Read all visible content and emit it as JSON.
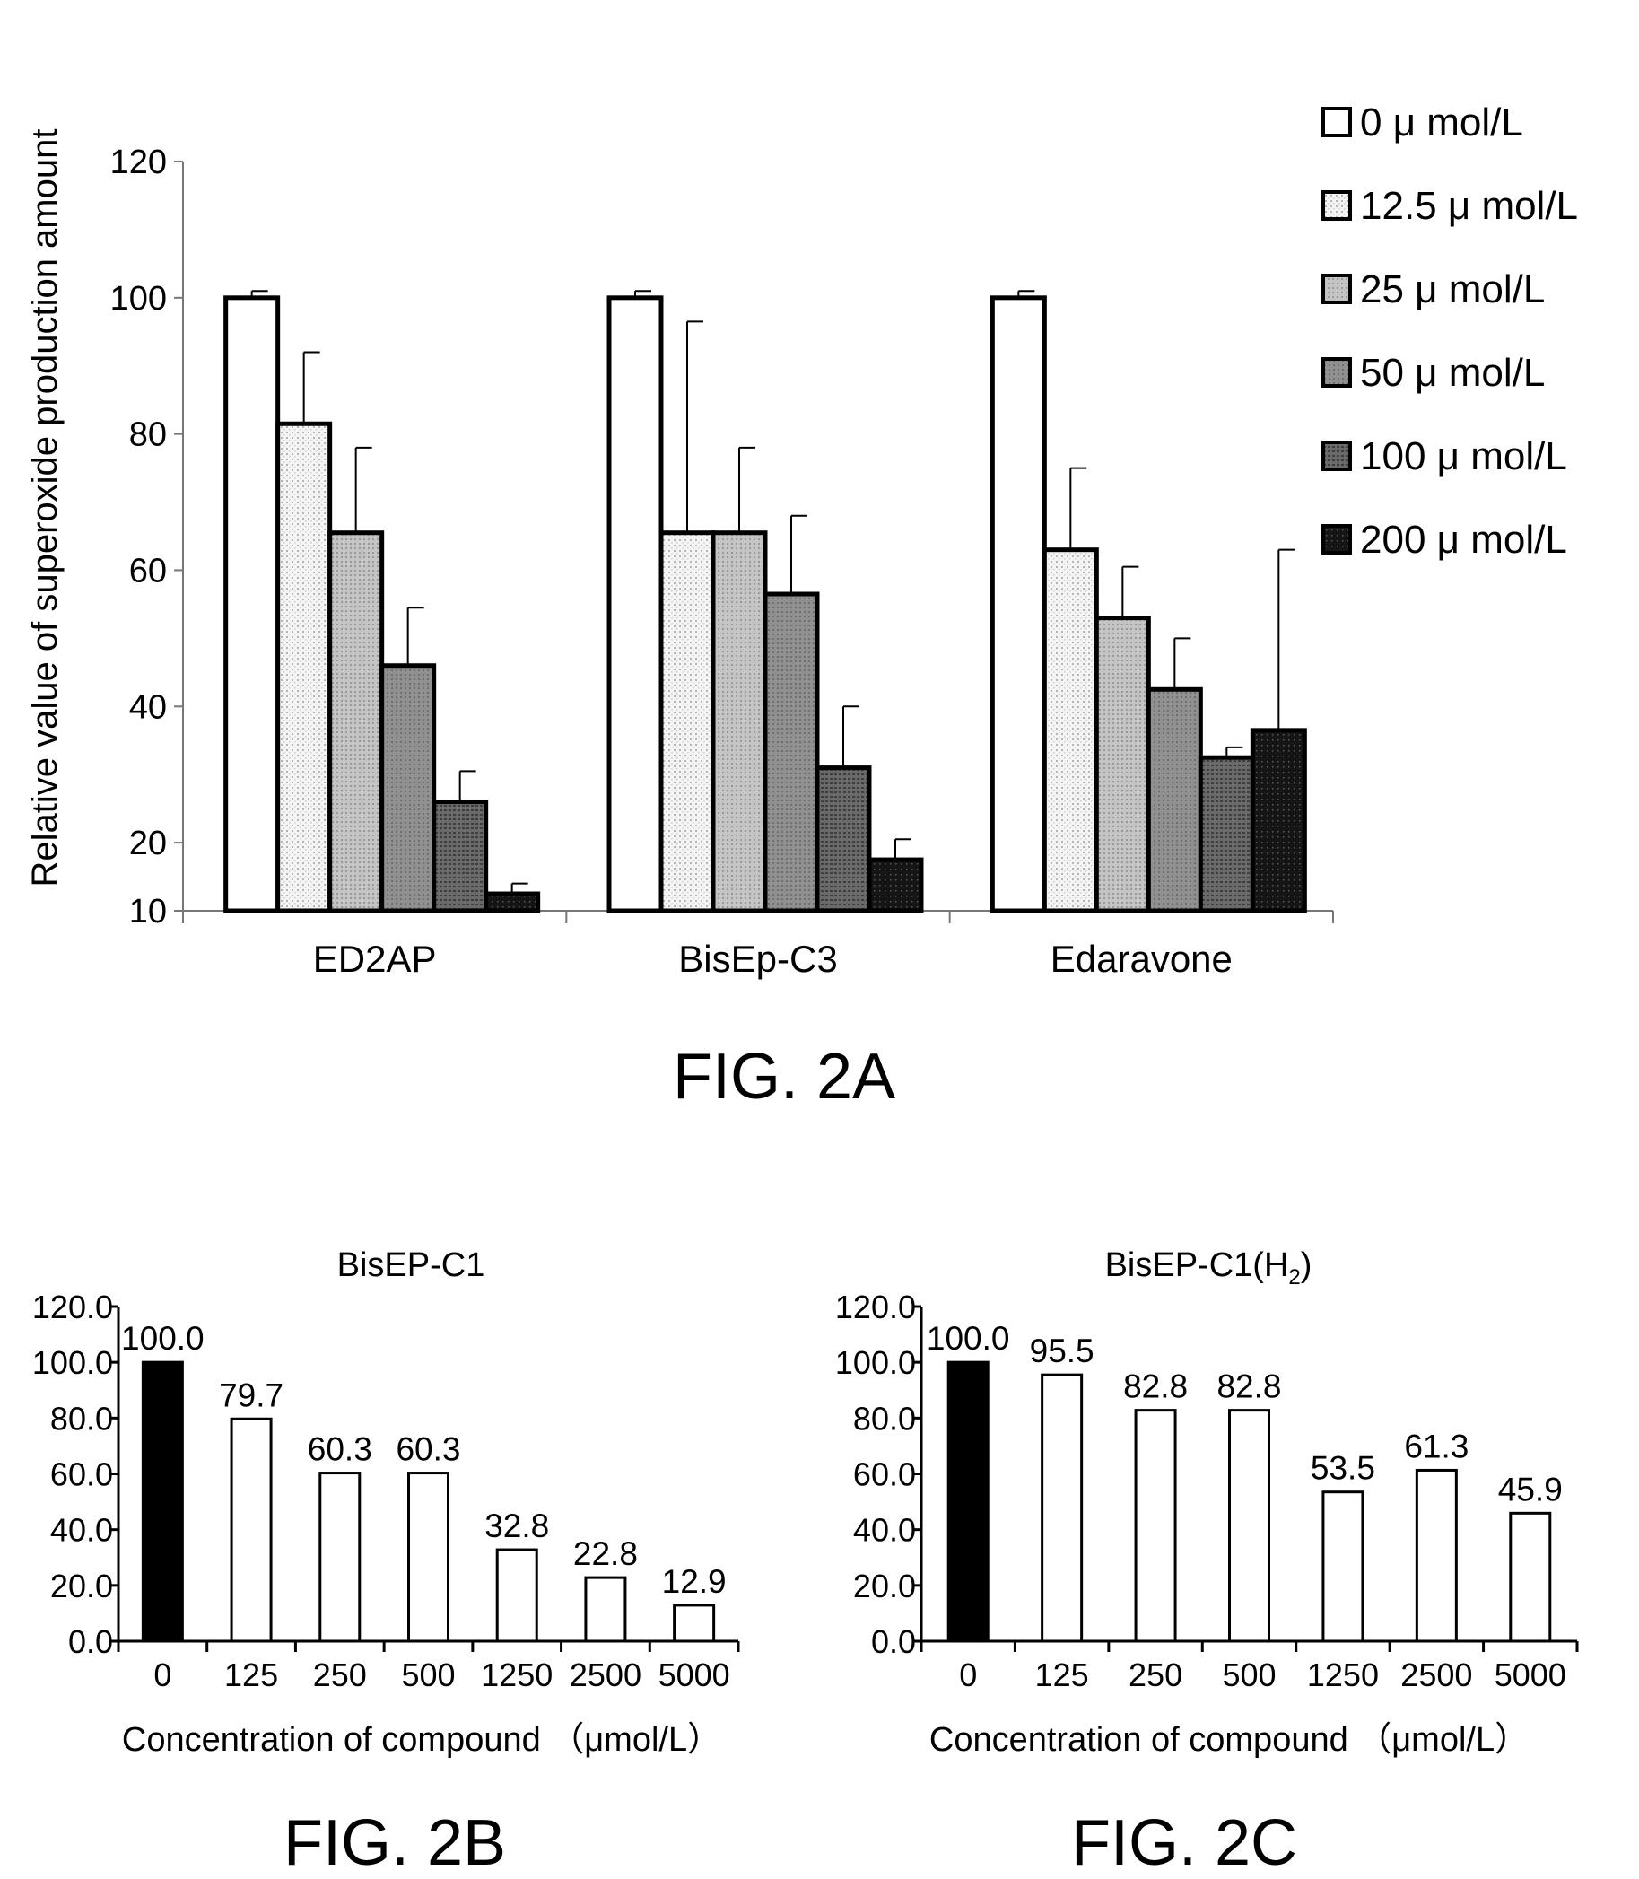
{
  "colors": {
    "fills": [
      "#ffffff",
      "url(#p-dots)",
      "url(#p-light)",
      "url(#p-mid)",
      "url(#p-dark)",
      "url(#p-black)"
    ],
    "control_bar": "#000000",
    "bar_outline": "#000000"
  },
  "chart_data": [
    {
      "id": "fig2a",
      "type": "bar",
      "figure_label": "FIG. 2A",
      "title": "",
      "xlabel": "",
      "ylabel": "Relative value of superoxide production amount",
      "ylim": [
        10,
        120
      ],
      "yticks": [
        10,
        20,
        40,
        60,
        80,
        100,
        120
      ],
      "grid": false,
      "legend_position": "top-right",
      "categories": [
        "ED2AP",
        "BisEp-C3",
        "Edaravone"
      ],
      "series": [
        {
          "name": "0 μ mol/L",
          "values": [
            100,
            100,
            100
          ],
          "error": [
            1,
            1,
            1
          ]
        },
        {
          "name": "12.5 μ mol/L",
          "values": [
            81.5,
            65.5,
            63
          ],
          "error": [
            10.5,
            31,
            12
          ]
        },
        {
          "name": "25 μ mol/L",
          "values": [
            65.5,
            65.5,
            53
          ],
          "error": [
            12.5,
            12.5,
            7.5
          ]
        },
        {
          "name": "50 μ mol/L",
          "values": [
            46,
            56.5,
            42.5
          ],
          "error": [
            8.5,
            11.5,
            7.5
          ]
        },
        {
          "name": "100 μ mol/L",
          "values": [
            26,
            31,
            32.5
          ],
          "error": [
            4.5,
            9,
            1.5
          ]
        },
        {
          "name": "200 μ mol/L",
          "values": [
            12.5,
            17.5,
            36.5
          ],
          "error": [
            1.5,
            3,
            26.5
          ]
        }
      ]
    },
    {
      "id": "fig2b",
      "type": "bar",
      "figure_label": "FIG. 2B",
      "title": "BisEP-C1",
      "xlabel": "Concentration of compound （μmol/L）",
      "ylabel": "",
      "ylim": [
        0,
        120
      ],
      "yticks": [
        "0.0",
        "20.0",
        "40.0",
        "60.0",
        "80.0",
        "100.0",
        "120.0"
      ],
      "grid": false,
      "categories": [
        "0",
        "125",
        "250",
        "500",
        "1250",
        "2500",
        "5000"
      ],
      "values": [
        100.0,
        79.7,
        60.3,
        60.3,
        32.8,
        22.8,
        12.9
      ],
      "data_labels": [
        "100.0",
        "79.7",
        "60.3",
        "60.3",
        "32.8",
        "22.8",
        "12.9"
      ]
    },
    {
      "id": "fig2c",
      "type": "bar",
      "figure_label": "FIG. 2C",
      "title": "BisEP-C1(H",
      "title_sub": "2",
      "title_end": ")",
      "xlabel": "Concentration of compound （μmol/L）",
      "ylabel": "",
      "ylim": [
        0,
        120
      ],
      "yticks": [
        "0.0",
        "20.0",
        "40.0",
        "60.0",
        "80.0",
        "100.0",
        "120.0"
      ],
      "grid": false,
      "categories": [
        "0",
        "125",
        "250",
        "500",
        "1250",
        "2500",
        "5000"
      ],
      "values": [
        100.0,
        95.5,
        82.8,
        82.8,
        53.5,
        61.3,
        45.9
      ],
      "data_labels": [
        "100.0",
        "95.5",
        "82.8",
        "82.8",
        "53.5",
        "61.3",
        "45.9"
      ]
    }
  ]
}
